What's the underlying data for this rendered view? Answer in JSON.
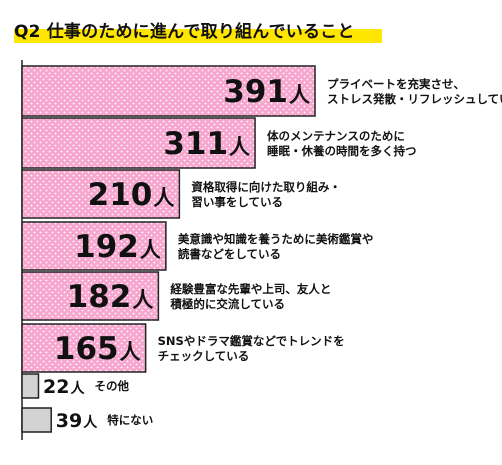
{
  "title": {
    "q": "Q2",
    "text": "仕事のために進んで取り組んでいること"
  },
  "chart_data": {
    "type": "bar",
    "orientation": "horizontal",
    "unit": "人",
    "colors": {
      "main_fill": "#f7a6cf",
      "dots": "#ffffff",
      "border": "#222222",
      "other_fill": "#d3d3d3",
      "highlight": "#ffe600"
    },
    "categories": [
      [
        "プライベートを充実させ、",
        "ストレス発散・リフレッシュしている"
      ],
      [
        "体のメンテナンスのために",
        "睡眠・休養の時間を多く持つ"
      ],
      [
        "資格取得に向けた取り組み・",
        "習い事をしている"
      ],
      [
        "美意識や知識を養うために美術鑑賞や",
        "読書などをしている"
      ],
      [
        "経験豊富な先輩や上司、友人と",
        "積極的に交流している"
      ],
      [
        "SNSやドラマ鑑賞などでトレンドを",
        "チェックしている"
      ],
      [
        "その他"
      ],
      [
        "特にない"
      ]
    ],
    "values": [
      391,
      311,
      210,
      192,
      182,
      165,
      22,
      39
    ],
    "styles": [
      "main",
      "main",
      "main",
      "main",
      "main",
      "main",
      "other",
      "other"
    ]
  }
}
